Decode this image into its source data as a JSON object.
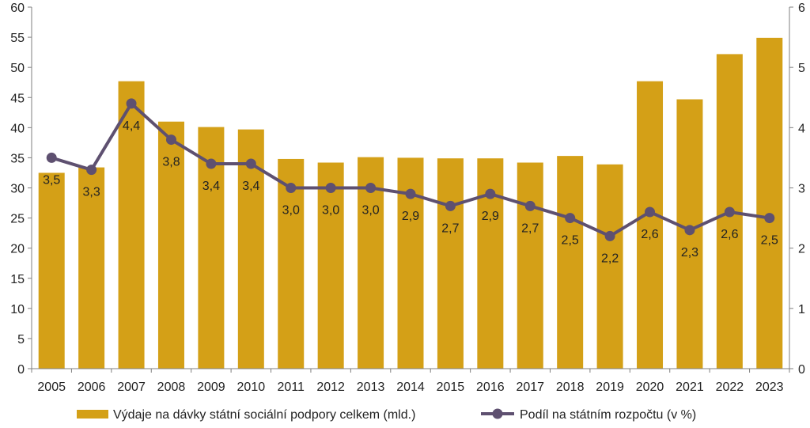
{
  "chart_data": {
    "type": "bar",
    "categories": [
      "2005",
      "2006",
      "2007",
      "2008",
      "2009",
      "2010",
      "2011",
      "2012",
      "2013",
      "2014",
      "2015",
      "2016",
      "2017",
      "2018",
      "2019",
      "2020",
      "2021",
      "2022",
      "2023"
    ],
    "series": [
      {
        "name": "Výdaje na dávky státní sociální podpory celkem (mld.)",
        "type": "bar",
        "axis": "left",
        "values": [
          32.5,
          33.4,
          47.7,
          41.0,
          40.1,
          39.7,
          34.8,
          34.2,
          35.1,
          35.0,
          34.9,
          34.9,
          34.2,
          35.3,
          33.9,
          47.7,
          44.7,
          52.2,
          54.9
        ],
        "color": "#D4A017"
      },
      {
        "name": "Podíl na státním rozpočtu (v %)",
        "type": "line",
        "axis": "right",
        "values": [
          3.5,
          3.3,
          4.4,
          3.8,
          3.4,
          3.4,
          3.0,
          3.0,
          3.0,
          2.9,
          2.7,
          2.9,
          2.7,
          2.5,
          2.2,
          2.6,
          2.3,
          2.6,
          2.5
        ],
        "labels": [
          "3,5",
          "3,3",
          "4,4",
          "3,8",
          "3,4",
          "3,4",
          "3,0",
          "3,0",
          "3,0",
          "2,9",
          "2,7",
          "2,9",
          "2,7",
          "2,5",
          "2,2",
          "2,6",
          "2,3",
          "2,6",
          "2,5"
        ],
        "color": "#5E5070"
      }
    ],
    "y_left": {
      "ylim": [
        0,
        60
      ],
      "ticks": [
        "0",
        "5",
        "10",
        "15",
        "20",
        "25",
        "30",
        "35",
        "40",
        "45",
        "50",
        "55",
        "60"
      ]
    },
    "y_right": {
      "ylim": [
        0,
        6
      ],
      "ticks": [
        "0",
        "1",
        "2",
        "3",
        "4",
        "5",
        "6"
      ]
    },
    "legend_position": "bottom",
    "grid": false
  }
}
